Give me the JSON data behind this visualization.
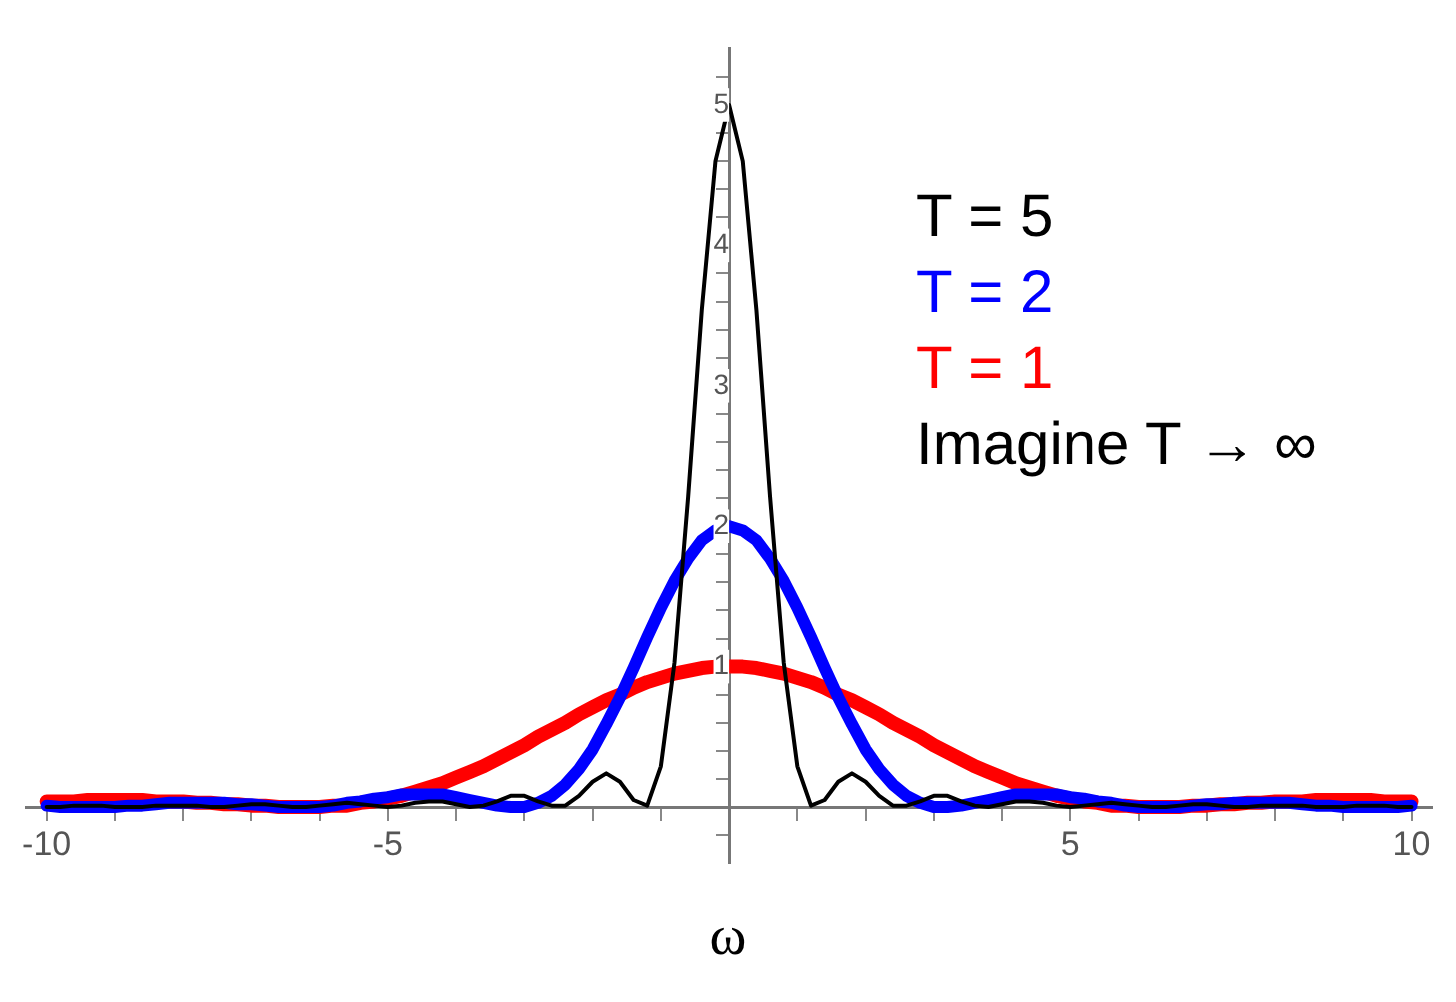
{
  "chart_data": {
    "type": "line",
    "xlabel": "ω",
    "legend": "top right",
    "marker": "none",
    "line_style": "solid",
    "grid": false,
    "x": [
      -10,
      -9.8,
      -9.6,
      -9.4,
      -9.2,
      -9,
      -8.8,
      -8.6,
      -8.4,
      -8.2,
      -8,
      -7.8,
      -7.6,
      -7.4,
      -7.2,
      -7,
      -6.8,
      -6.6,
      -6.4,
      -6.2,
      -6,
      -5.8,
      -5.6,
      -5.4,
      -5.2,
      -5,
      -4.8,
      -4.6,
      -4.4,
      -4.2,
      -4,
      -3.8,
      -3.6,
      -3.4,
      -3.2,
      -3,
      -2.8,
      -2.6,
      -2.4,
      -2.2,
      -2,
      -1.8,
      -1.6,
      -1.4,
      -1.2,
      -1,
      -0.8,
      -0.6,
      -0.4,
      -0.2,
      0,
      0.2,
      0.4,
      0.6,
      0.8,
      1,
      1.2,
      1.4,
      1.6,
      1.8,
      2,
      2.2,
      2.4,
      2.6,
      2.8,
      3,
      3.2,
      3.4,
      3.6,
      3.8,
      4,
      4.2,
      4.4,
      4.6,
      4.8,
      5,
      5.2,
      5.4,
      5.6,
      5.8,
      6,
      6.2,
      6.4,
      6.6,
      6.8,
      7,
      7.2,
      7.4,
      7.6,
      7.8,
      8,
      8.2,
      8.4,
      8.6,
      8.8,
      9,
      9.2,
      9.4,
      9.6,
      9.8,
      10
    ],
    "series": [
      {
        "name": "T = 5",
        "color": "#000000",
        "values": [
          0,
          0,
          0.01,
          0.01,
          0.01,
          0,
          0,
          0,
          0.01,
          0.01,
          0.01,
          0.01,
          0,
          0,
          0.01,
          0.02,
          0.02,
          0.01,
          0,
          0,
          0.01,
          0.02,
          0.03,
          0.02,
          0.01,
          0,
          0.01,
          0.03,
          0.04,
          0.04,
          0.02,
          0,
          0.01,
          0.04,
          0.08,
          0.08,
          0.04,
          0.01,
          0.01,
          0.08,
          0.18,
          0.24,
          0.18,
          0.05,
          0.01,
          0.29,
          1.03,
          2.21,
          3.54,
          4.6,
          5,
          4.6,
          3.54,
          2.21,
          1.03,
          0.29,
          0.01,
          0.05,
          0.18,
          0.24,
          0.18,
          0.08,
          0.01,
          0.01,
          0.04,
          0.08,
          0.08,
          0.04,
          0.01,
          0,
          0.02,
          0.04,
          0.04,
          0.03,
          0.01,
          0,
          0.01,
          0.02,
          0.03,
          0.02,
          0.01,
          0,
          0,
          0.01,
          0.02,
          0.02,
          0.01,
          0,
          0,
          0.01,
          0.01,
          0.01,
          0.01,
          0,
          0,
          0,
          0.01,
          0.01,
          0.01,
          0,
          0
        ]
      },
      {
        "name": "T = 2",
        "color": "#0000ff",
        "values": [
          0.01,
          0,
          0,
          0,
          0,
          0,
          0.01,
          0.01,
          0.02,
          0.03,
          0.03,
          0.03,
          0.03,
          0.03,
          0.02,
          0.02,
          0.01,
          0,
          0,
          0,
          0,
          0.01,
          0.03,
          0.04,
          0.06,
          0.07,
          0.09,
          0.09,
          0.09,
          0.09,
          0.07,
          0.05,
          0.03,
          0.01,
          0,
          0,
          0.03,
          0.08,
          0.16,
          0.27,
          0.41,
          0.59,
          0.78,
          0.99,
          1.21,
          1.42,
          1.61,
          1.77,
          1.9,
          1.97,
          2,
          1.97,
          1.9,
          1.77,
          1.61,
          1.42,
          1.21,
          0.99,
          0.78,
          0.59,
          0.41,
          0.27,
          0.16,
          0.08,
          0.03,
          0,
          0,
          0.01,
          0.03,
          0.05,
          0.07,
          0.09,
          0.09,
          0.09,
          0.09,
          0.07,
          0.06,
          0.04,
          0.03,
          0.01,
          0,
          0,
          0,
          0,
          0.01,
          0.02,
          0.02,
          0.03,
          0.03,
          0.03,
          0.03,
          0.03,
          0.02,
          0.01,
          0.01,
          0,
          0,
          0,
          0,
          0,
          0.01
        ]
      },
      {
        "name": "T = 1",
        "color": "#ff0000",
        "values": [
          0.04,
          0.04,
          0.04,
          0.05,
          0.05,
          0.05,
          0.05,
          0.05,
          0.04,
          0.04,
          0.04,
          0.03,
          0.03,
          0.02,
          0.02,
          0.01,
          0.01,
          0,
          0,
          0,
          0,
          0.01,
          0.01,
          0.03,
          0.04,
          0.06,
          0.08,
          0.11,
          0.14,
          0.17,
          0.21,
          0.25,
          0.29,
          0.34,
          0.39,
          0.44,
          0.5,
          0.55,
          0.6,
          0.66,
          0.71,
          0.76,
          0.8,
          0.85,
          0.89,
          0.92,
          0.95,
          0.97,
          0.99,
          1,
          1,
          1,
          0.99,
          0.97,
          0.95,
          0.92,
          0.89,
          0.85,
          0.8,
          0.76,
          0.71,
          0.66,
          0.6,
          0.55,
          0.5,
          0.44,
          0.39,
          0.34,
          0.29,
          0.25,
          0.21,
          0.17,
          0.14,
          0.11,
          0.08,
          0.06,
          0.04,
          0.03,
          0.01,
          0.01,
          0,
          0,
          0,
          0,
          0.01,
          0.01,
          0.02,
          0.02,
          0.03,
          0.03,
          0.04,
          0.04,
          0.04,
          0.05,
          0.05,
          0.05,
          0.05,
          0.05,
          0.04,
          0.04,
          0.04
        ]
      }
    ],
    "xlim": [
      -10.3,
      10.3
    ],
    "xticks": [
      -10,
      {
        "value": -9,
        "label": null
      },
      {
        "value": -8,
        "label": null
      },
      {
        "value": -7,
        "label": null
      },
      {
        "value": -6,
        "label": null
      },
      -5,
      {
        "value": -4,
        "label": null
      },
      {
        "value": -3,
        "label": null
      },
      {
        "value": -2,
        "label": null
      },
      {
        "value": -1,
        "label": null
      },
      {
        "value": 1,
        "label": null
      },
      {
        "value": 2,
        "label": null
      },
      {
        "value": 3,
        "label": null
      },
      {
        "value": 4,
        "label": null
      },
      5,
      {
        "value": 6,
        "label": null
      },
      {
        "value": 7,
        "label": null
      },
      {
        "value": 8,
        "label": null
      },
      {
        "value": 9,
        "label": null
      },
      10
    ],
    "ylim": [
      -0.4,
      5.4
    ],
    "yticks": [
      {
        "value": -0.2,
        "label": null
      },
      {
        "value": 0.2,
        "label": null
      },
      {
        "value": 0.4,
        "label": null
      },
      {
        "value": 0.6,
        "label": null
      },
      {
        "value": 0.8,
        "label": null
      },
      1,
      {
        "value": 1.2,
        "label": null
      },
      {
        "value": 1.4,
        "label": null
      },
      {
        "value": 1.6,
        "label": null
      },
      {
        "value": 1.8,
        "label": null
      },
      2,
      {
        "value": 2.2,
        "label": null
      },
      {
        "value": 2.4,
        "label": null
      },
      {
        "value": 2.6,
        "label": null
      },
      {
        "value": 2.8,
        "label": null
      },
      3,
      {
        "value": 3.2,
        "label": null
      },
      {
        "value": 3.4,
        "label": null
      },
      {
        "value": 3.6,
        "label": null
      },
      {
        "value": 3.8,
        "label": null
      },
      4,
      {
        "value": 4.2,
        "label": null
      },
      {
        "value": 4.4,
        "label": null
      },
      {
        "value": 4.6,
        "label": null
      },
      {
        "value": 4.8,
        "label": null
      },
      5,
      {
        "value": 5.2,
        "label": null
      }
    ],
    "annotations": [
      "Imagine T → ∞"
    ]
  }
}
